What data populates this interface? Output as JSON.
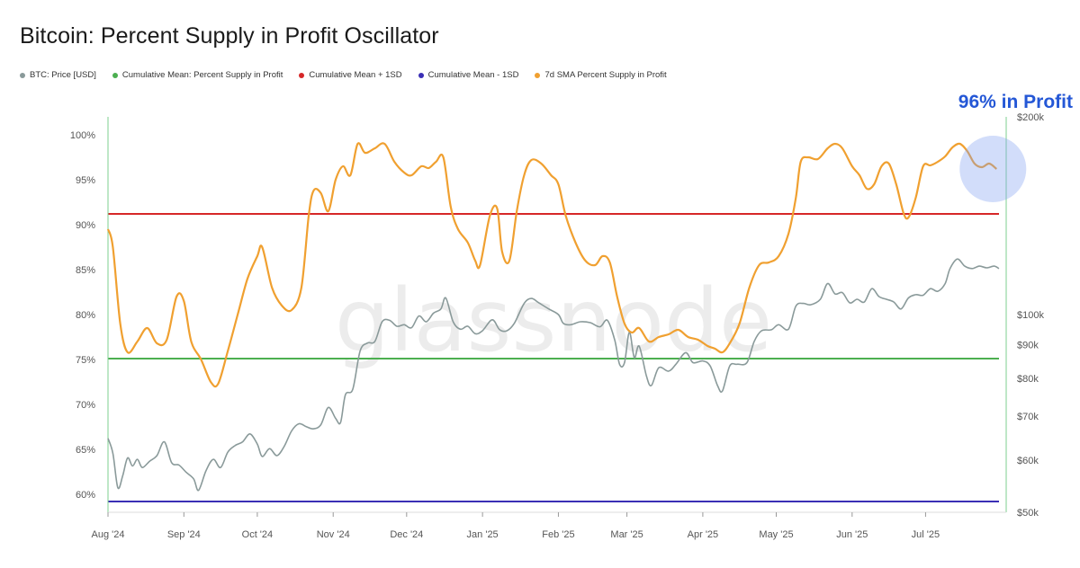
{
  "chart_data": {
    "type": "line",
    "title": "Bitcoin: Percent Supply in Profit Oscillator",
    "annotation": "96% in Profit",
    "watermark": "glassnode",
    "legend_position": "top-left",
    "grid": false,
    "legend": [
      {
        "name": "BTC: Price [USD]",
        "color": "#8a9a9a"
      },
      {
        "name": "Cumulative Mean: Percent Supply in Profit",
        "color": "#4caf50"
      },
      {
        "name": "Cumulative Mean + 1SD",
        "color": "#d62728"
      },
      {
        "name": "Cumulative Mean - 1SD",
        "color": "#3a2fb5"
      },
      {
        "name": "7d SMA Percent Supply in Profit",
        "color": "#f0a030"
      }
    ],
    "x_axis": {
      "start": "2024-08-01",
      "end": "2025-07-31",
      "tick_labels": [
        "Aug '24",
        "Sep '24",
        "Oct '24",
        "Nov '24",
        "Dec '24",
        "Jan '25",
        "Feb '25",
        "Mar '25",
        "Apr '25",
        "May '25",
        "Jun '25",
        "Jul '25"
      ],
      "tick_dates": [
        "2024-08-01",
        "2024-09-01",
        "2024-10-01",
        "2024-11-01",
        "2024-12-01",
        "2025-01-01",
        "2025-02-01",
        "2025-03-01",
        "2025-04-01",
        "2025-05-01",
        "2025-06-01",
        "2025-07-01"
      ]
    },
    "y_left": {
      "label": "",
      "range": [
        58,
        102
      ],
      "ticks": [
        60,
        65,
        70,
        75,
        80,
        85,
        90,
        95,
        100
      ],
      "tick_labels": [
        "60%",
        "65%",
        "70%",
        "75%",
        "80%",
        "85%",
        "90%",
        "95%",
        "100%"
      ]
    },
    "y_right": {
      "label": "",
      "scale": "log",
      "range": [
        50000,
        200000
      ],
      "ticks": [
        50000,
        60000,
        70000,
        80000,
        90000,
        100000,
        200000
      ],
      "tick_labels": [
        "$50k",
        "$60k",
        "$70k",
        "$80k",
        "$90k",
        "$100k",
        "$200k"
      ]
    },
    "reference_lines": [
      {
        "name": "Cumulative Mean + 1SD",
        "value": 91.2,
        "color": "#d62728"
      },
      {
        "name": "Cumulative Mean: Percent Supply in Profit",
        "value": 75.1,
        "color": "#4caf50"
      },
      {
        "name": "Cumulative Mean - 1SD",
        "value": 59.2,
        "color": "#3a2fb5"
      }
    ],
    "series": [
      {
        "name": "7d SMA Percent Supply in Profit",
        "axis": "left",
        "color": "#f0a030",
        "points": [
          [
            "2024-08-01",
            89.5
          ],
          [
            "2024-08-03",
            87.5
          ],
          [
            "2024-08-06",
            79
          ],
          [
            "2024-08-09",
            75.8
          ],
          [
            "2024-08-13",
            77
          ],
          [
            "2024-08-17",
            78.5
          ],
          [
            "2024-08-21",
            76.8
          ],
          [
            "2024-08-25",
            77.2
          ],
          [
            "2024-08-29",
            82
          ],
          [
            "2024-09-01",
            81.5
          ],
          [
            "2024-09-04",
            77
          ],
          [
            "2024-09-08",
            75
          ],
          [
            "2024-09-12",
            72.5
          ],
          [
            "2024-09-15",
            72.3
          ],
          [
            "2024-09-19",
            76
          ],
          [
            "2024-09-23",
            80
          ],
          [
            "2024-09-27",
            84
          ],
          [
            "2024-10-01",
            86.5
          ],
          [
            "2024-10-03",
            87.5
          ],
          [
            "2024-10-07",
            83
          ],
          [
            "2024-10-11",
            81
          ],
          [
            "2024-10-15",
            80.5
          ],
          [
            "2024-10-19",
            83
          ],
          [
            "2024-10-22",
            91
          ],
          [
            "2024-10-24",
            93.8
          ],
          [
            "2024-10-27",
            93.5
          ],
          [
            "2024-10-30",
            91.5
          ],
          [
            "2024-11-02",
            95
          ],
          [
            "2024-11-05",
            96.5
          ],
          [
            "2024-11-08",
            95.5
          ],
          [
            "2024-11-11",
            99
          ],
          [
            "2024-11-14",
            98
          ],
          [
            "2024-11-18",
            98.5
          ],
          [
            "2024-11-22",
            99
          ],
          [
            "2024-11-26",
            97
          ],
          [
            "2024-11-30",
            95.8
          ],
          [
            "2024-12-03",
            95.5
          ],
          [
            "2024-12-07",
            96.5
          ],
          [
            "2024-12-10",
            96.3
          ],
          [
            "2024-12-13",
            97
          ],
          [
            "2024-12-16",
            97.5
          ],
          [
            "2024-12-19",
            92
          ],
          [
            "2024-12-22",
            89.5
          ],
          [
            "2024-12-26",
            88
          ],
          [
            "2024-12-29",
            86
          ],
          [
            "2024-12-31",
            85.5
          ],
          [
            "2025-01-04",
            91
          ],
          [
            "2025-01-07",
            91.8
          ],
          [
            "2025-01-09",
            87
          ],
          [
            "2025-01-12",
            86
          ],
          [
            "2025-01-15",
            91.5
          ],
          [
            "2025-01-18",
            95.5
          ],
          [
            "2025-01-21",
            97.2
          ],
          [
            "2025-01-25",
            96.8
          ],
          [
            "2025-01-29",
            95.5
          ],
          [
            "2025-02-01",
            94.5
          ],
          [
            "2025-02-04",
            91
          ],
          [
            "2025-02-08",
            88
          ],
          [
            "2025-02-12",
            86
          ],
          [
            "2025-02-16",
            85.5
          ],
          [
            "2025-02-19",
            86.5
          ],
          [
            "2025-02-22",
            85.8
          ],
          [
            "2025-02-25",
            82
          ],
          [
            "2025-02-28",
            79
          ],
          [
            "2025-03-03",
            78
          ],
          [
            "2025-03-06",
            78.5
          ],
          [
            "2025-03-10",
            77
          ],
          [
            "2025-03-14",
            77.5
          ],
          [
            "2025-03-18",
            77.8
          ],
          [
            "2025-03-22",
            78.3
          ],
          [
            "2025-03-26",
            77.5
          ],
          [
            "2025-03-30",
            77.2
          ],
          [
            "2025-04-03",
            76.5
          ],
          [
            "2025-04-06",
            76.2
          ],
          [
            "2025-04-09",
            75.8
          ],
          [
            "2025-04-12",
            76.8
          ],
          [
            "2025-04-16",
            79
          ],
          [
            "2025-04-20",
            83
          ],
          [
            "2025-04-24",
            85.5
          ],
          [
            "2025-04-28",
            85.8
          ],
          [
            "2025-05-02",
            86.5
          ],
          [
            "2025-05-06",
            89
          ],
          [
            "2025-05-09",
            93
          ],
          [
            "2025-05-11",
            97
          ],
          [
            "2025-05-14",
            97.5
          ],
          [
            "2025-05-18",
            97.3
          ],
          [
            "2025-05-22",
            98.5
          ],
          [
            "2025-05-25",
            99
          ],
          [
            "2025-05-28",
            98.5
          ],
          [
            "2025-06-01",
            96.5
          ],
          [
            "2025-06-04",
            95.5
          ],
          [
            "2025-06-07",
            94
          ],
          [
            "2025-06-10",
            94.5
          ],
          [
            "2025-06-13",
            96.5
          ],
          [
            "2025-06-16",
            96.8
          ],
          [
            "2025-06-19",
            94.5
          ],
          [
            "2025-06-22",
            91.3
          ],
          [
            "2025-06-24",
            90.8
          ],
          [
            "2025-06-27",
            93
          ],
          [
            "2025-06-30",
            96.5
          ],
          [
            "2025-07-03",
            96.6
          ],
          [
            "2025-07-06",
            97
          ],
          [
            "2025-07-09",
            97.6
          ],
          [
            "2025-07-12",
            98.6
          ],
          [
            "2025-07-15",
            99
          ],
          [
            "2025-07-18",
            98.2
          ],
          [
            "2025-07-21",
            96.8
          ],
          [
            "2025-07-24",
            96.4
          ],
          [
            "2025-07-27",
            96.8
          ],
          [
            "2025-07-30",
            96.2
          ]
        ]
      },
      {
        "name": "BTC: Price [USD]",
        "axis": "right",
        "color": "#8a9a9a",
        "points": [
          [
            "2024-08-01",
            64800
          ],
          [
            "2024-08-03",
            61500
          ],
          [
            "2024-08-05",
            54500
          ],
          [
            "2024-08-07",
            56800
          ],
          [
            "2024-08-09",
            60500
          ],
          [
            "2024-08-11",
            58800
          ],
          [
            "2024-08-13",
            60200
          ],
          [
            "2024-08-15",
            58500
          ],
          [
            "2024-08-18",
            59800
          ],
          [
            "2024-08-21",
            61000
          ],
          [
            "2024-08-24",
            64000
          ],
          [
            "2024-08-27",
            59500
          ],
          [
            "2024-08-30",
            59000
          ],
          [
            "2024-09-02",
            57500
          ],
          [
            "2024-09-05",
            56200
          ],
          [
            "2024-09-07",
            54000
          ],
          [
            "2024-09-10",
            57800
          ],
          [
            "2024-09-13",
            60200
          ],
          [
            "2024-09-16",
            58500
          ],
          [
            "2024-09-19",
            61800
          ],
          [
            "2024-09-22",
            63200
          ],
          [
            "2024-09-25",
            64000
          ],
          [
            "2024-09-28",
            65800
          ],
          [
            "2024-10-01",
            63500
          ],
          [
            "2024-10-03",
            60800
          ],
          [
            "2024-10-06",
            62500
          ],
          [
            "2024-10-09",
            61000
          ],
          [
            "2024-10-12",
            63000
          ],
          [
            "2024-10-15",
            66500
          ],
          [
            "2024-10-18",
            68200
          ],
          [
            "2024-10-21",
            67500
          ],
          [
            "2024-10-24",
            67000
          ],
          [
            "2024-10-27",
            68000
          ],
          [
            "2024-10-30",
            72200
          ],
          [
            "2024-11-02",
            69500
          ],
          [
            "2024-11-04",
            68500
          ],
          [
            "2024-11-06",
            75500
          ],
          [
            "2024-11-09",
            77000
          ],
          [
            "2024-11-12",
            88000
          ],
          [
            "2024-11-15",
            90500
          ],
          [
            "2024-11-18",
            91000
          ],
          [
            "2024-11-21",
            97500
          ],
          [
            "2024-11-24",
            98000
          ],
          [
            "2024-11-27",
            96000
          ],
          [
            "2024-11-30",
            96500
          ],
          [
            "2024-12-03",
            95500
          ],
          [
            "2024-12-06",
            99500
          ],
          [
            "2024-12-09",
            97500
          ],
          [
            "2024-12-12",
            100500
          ],
          [
            "2024-12-15",
            102000
          ],
          [
            "2024-12-17",
            106000
          ],
          [
            "2024-12-20",
            97500
          ],
          [
            "2024-12-23",
            95000
          ],
          [
            "2024-12-26",
            96000
          ],
          [
            "2024-12-29",
            93500
          ],
          [
            "2025-01-01",
            94500
          ],
          [
            "2025-01-05",
            98200
          ],
          [
            "2025-01-08",
            94800
          ],
          [
            "2025-01-11",
            94500
          ],
          [
            "2025-01-14",
            97000
          ],
          [
            "2025-01-18",
            104000
          ],
          [
            "2025-01-21",
            105800
          ],
          [
            "2025-01-24",
            104200
          ],
          [
            "2025-01-28",
            102000
          ],
          [
            "2025-02-01",
            100000
          ],
          [
            "2025-02-03",
            97000
          ],
          [
            "2025-02-06",
            96500
          ],
          [
            "2025-02-10",
            97500
          ],
          [
            "2025-02-14",
            97200
          ],
          [
            "2025-02-18",
            95800
          ],
          [
            "2025-02-21",
            98000
          ],
          [
            "2025-02-24",
            91500
          ],
          [
            "2025-02-26",
            84000
          ],
          [
            "2025-02-28",
            84500
          ],
          [
            "2025-03-02",
            94000
          ],
          [
            "2025-03-04",
            86000
          ],
          [
            "2025-03-06",
            89500
          ],
          [
            "2025-03-09",
            80500
          ],
          [
            "2025-03-11",
            78000
          ],
          [
            "2025-03-14",
            83000
          ],
          [
            "2025-03-18",
            82000
          ],
          [
            "2025-03-21",
            84000
          ],
          [
            "2025-03-25",
            87500
          ],
          [
            "2025-03-28",
            84500
          ],
          [
            "2025-04-01",
            85000
          ],
          [
            "2025-04-04",
            83500
          ],
          [
            "2025-04-07",
            78000
          ],
          [
            "2025-04-09",
            76500
          ],
          [
            "2025-04-12",
            83500
          ],
          [
            "2025-04-15",
            84000
          ],
          [
            "2025-04-19",
            84500
          ],
          [
            "2025-04-22",
            91000
          ],
          [
            "2025-04-25",
            94500
          ],
          [
            "2025-04-29",
            94800
          ],
          [
            "2025-05-02",
            96500
          ],
          [
            "2025-05-06",
            95000
          ],
          [
            "2025-05-09",
            103000
          ],
          [
            "2025-05-12",
            104000
          ],
          [
            "2025-05-15",
            103500
          ],
          [
            "2025-05-19",
            105500
          ],
          [
            "2025-05-22",
            111500
          ],
          [
            "2025-05-25",
            107500
          ],
          [
            "2025-05-28",
            108000
          ],
          [
            "2025-05-31",
            104200
          ],
          [
            "2025-06-03",
            105500
          ],
          [
            "2025-06-06",
            104500
          ],
          [
            "2025-06-09",
            109500
          ],
          [
            "2025-06-12",
            106500
          ],
          [
            "2025-06-15",
            105500
          ],
          [
            "2025-06-18",
            104500
          ],
          [
            "2025-06-21",
            102000
          ],
          [
            "2025-06-24",
            106000
          ],
          [
            "2025-06-27",
            107200
          ],
          [
            "2025-06-30",
            107000
          ],
          [
            "2025-07-03",
            109500
          ],
          [
            "2025-07-06",
            108500
          ],
          [
            "2025-07-09",
            111500
          ],
          [
            "2025-07-11",
            117500
          ],
          [
            "2025-07-14",
            121500
          ],
          [
            "2025-07-17",
            118500
          ],
          [
            "2025-07-20",
            117500
          ],
          [
            "2025-07-23",
            118500
          ],
          [
            "2025-07-26",
            117800
          ],
          [
            "2025-07-29",
            118500
          ],
          [
            "2025-07-31",
            117500
          ]
        ]
      }
    ]
  }
}
